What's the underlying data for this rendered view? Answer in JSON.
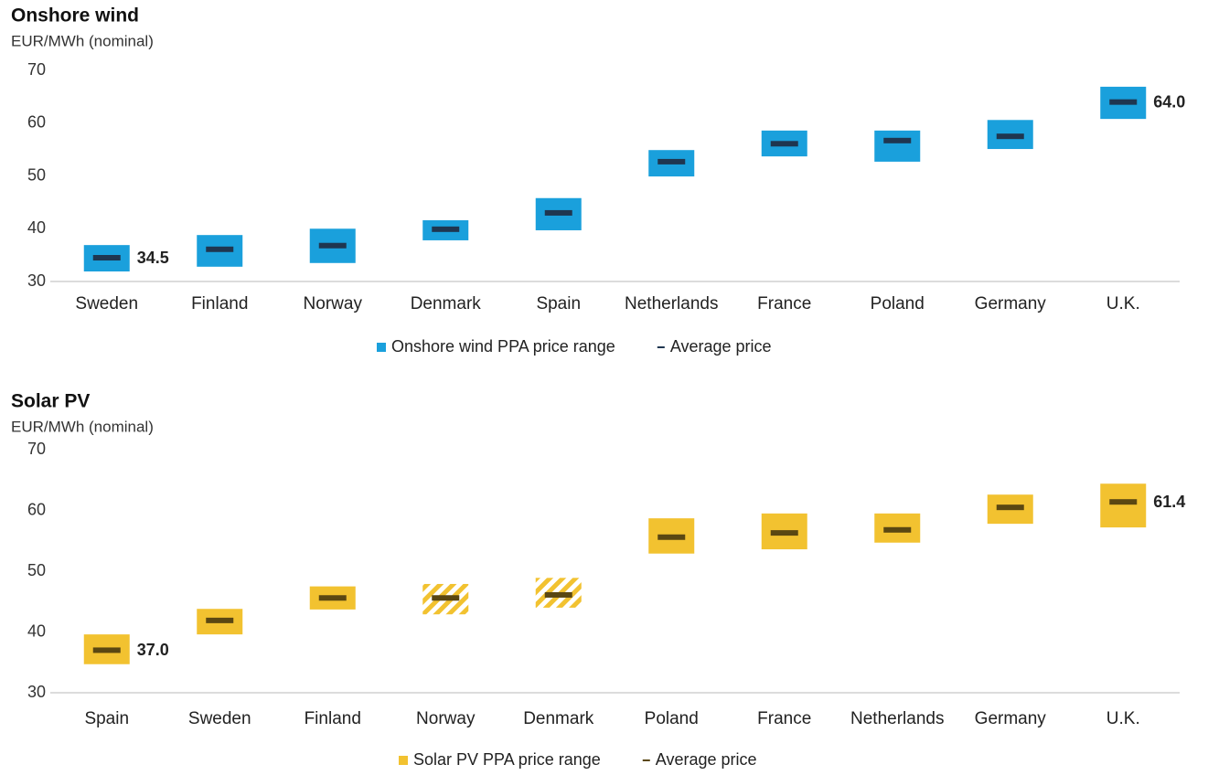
{
  "chart_data": [
    {
      "type": "range",
      "title": "Onshore wind",
      "y_label": "EUR/MWh (nominal)",
      "categories": [
        "Sweden",
        "Finland",
        "Norway",
        "Denmark",
        "Spain",
        "Netherlands",
        "France",
        "Poland",
        "Germany",
        "U.K."
      ],
      "series": [
        {
          "name": "Onshore wind PPA price range",
          "color": "#1aa0dc",
          "low": [
            31.9,
            32.8,
            33.5,
            37.8,
            39.7,
            49.9,
            53.7,
            52.7,
            55.1,
            60.8
          ],
          "high": [
            36.9,
            38.8,
            40.0,
            41.6,
            45.8,
            54.9,
            58.6,
            58.6,
            60.6,
            66.9
          ]
        },
        {
          "name": "Average price",
          "color": "#1f3650",
          "values": [
            34.5,
            36.1,
            36.8,
            39.9,
            43.0,
            52.7,
            56.1,
            56.7,
            57.5,
            64.0
          ],
          "value_labels": [
            "34.5",
            null,
            null,
            null,
            null,
            null,
            null,
            null,
            null,
            "64.0"
          ]
        }
      ],
      "label_color": "#4a6583",
      "ylim": [
        30,
        70
      ],
      "yticks": [
        30,
        40,
        50,
        60,
        70
      ]
    },
    {
      "type": "range",
      "title": "Solar PV",
      "y_label": "EUR/MWh (nominal)",
      "categories": [
        "Spain",
        "Sweden",
        "Finland",
        "Norway",
        "Denmark",
        "Poland",
        "France",
        "Netherlands",
        "Germany",
        "U.K."
      ],
      "series": [
        {
          "name": "Solar PV PPA price range",
          "color": "#f2c230",
          "low": [
            34.7,
            39.6,
            43.7,
            42.9,
            44.0,
            52.9,
            53.6,
            54.7,
            57.8,
            57.2
          ],
          "high": [
            39.6,
            43.8,
            47.5,
            47.9,
            48.9,
            58.7,
            59.5,
            59.5,
            62.6,
            64.4
          ],
          "hatched": [
            false,
            false,
            false,
            true,
            true,
            false,
            false,
            false,
            false,
            false
          ]
        },
        {
          "name": "Average price",
          "color": "#5a4712",
          "values": [
            37.0,
            41.9,
            45.6,
            45.6,
            46.1,
            55.6,
            56.3,
            56.8,
            60.5,
            61.4
          ],
          "value_labels": [
            "37.0",
            null,
            null,
            null,
            null,
            null,
            null,
            null,
            null,
            "61.4"
          ]
        }
      ],
      "label_color": "#7a6a28",
      "ylim": [
        30,
        70
      ],
      "yticks": [
        30,
        40,
        50,
        60,
        70
      ]
    }
  ]
}
